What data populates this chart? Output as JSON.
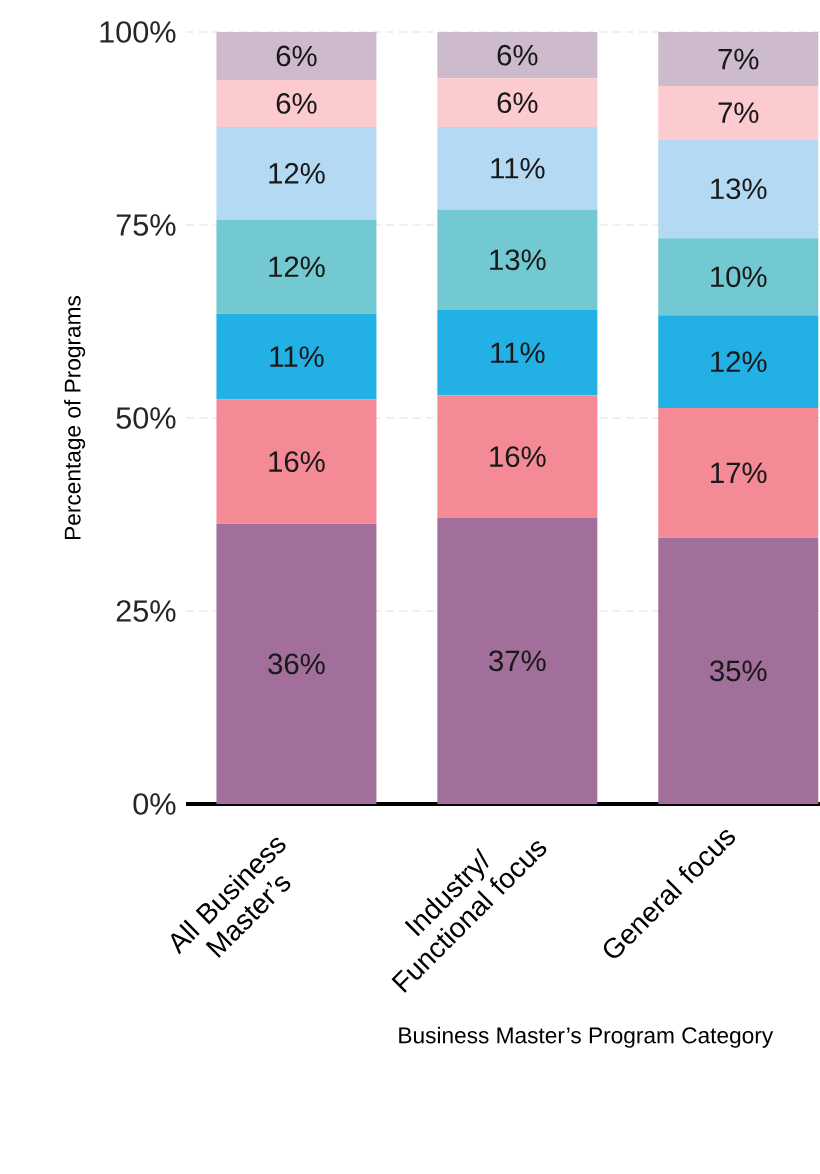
{
  "chart_data": {
    "type": "bar",
    "stacked": true,
    "xlabel": "Business Master’s Program Category",
    "ylabel": "Percentage of Programs",
    "categories": [
      "All Business Master’s",
      "Industry/ Functional focus",
      "General focus"
    ],
    "ylim": [
      0,
      100
    ],
    "yticks": [
      {
        "value": 0,
        "label": "0%"
      },
      {
        "value": 25,
        "label": "25%"
      },
      {
        "value": 50,
        "label": "50%"
      },
      {
        "value": 75,
        "label": "75%"
      },
      {
        "value": 100,
        "label": "100%"
      }
    ],
    "grid": "y",
    "series": [
      {
        "color": "#a26f9a",
        "values": [
          36.3,
          37.1,
          34.5
        ],
        "value_labels": [
          "36%",
          "37%",
          "35%"
        ]
      },
      {
        "color": "#f38a96",
        "values": [
          16.1,
          15.8,
          16.8
        ],
        "value_labels": [
          "16%",
          "16%",
          "17%"
        ]
      },
      {
        "color": "#22b0e5",
        "values": [
          11.1,
          11.1,
          12.0
        ],
        "value_labels": [
          "11%",
          "11%",
          "12%"
        ]
      },
      {
        "color": "#73c9d1",
        "values": [
          12.2,
          13.0,
          10.0
        ],
        "value_labels": [
          "12%",
          "13%",
          "10%"
        ]
      },
      {
        "color": "#b4daf3",
        "values": [
          12.0,
          10.7,
          12.8
        ],
        "value_labels": [
          "12%",
          "11%",
          "13%"
        ]
      },
      {
        "color": "#fccbd0",
        "values": [
          6.1,
          6.3,
          6.9
        ],
        "value_labels": [
          "6%",
          "6%",
          "7%"
        ]
      },
      {
        "color": "#cebacd",
        "values": [
          6.2,
          6.0,
          7.0
        ],
        "value_labels": [
          "6%",
          "6%",
          "7%"
        ]
      }
    ]
  }
}
